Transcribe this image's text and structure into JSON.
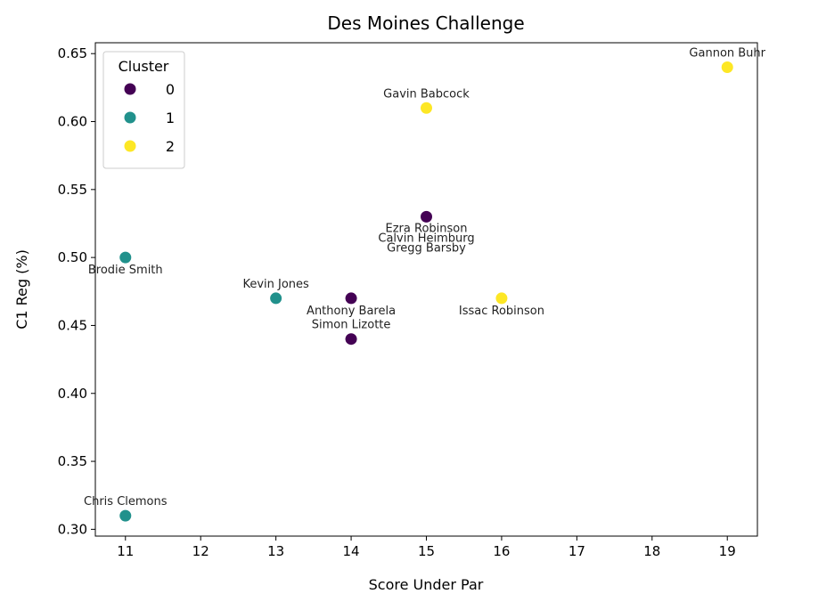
{
  "chart_data": {
    "type": "scatter",
    "title": "Des Moines Challenge",
    "xlabel": "Score Under Par",
    "ylabel": "C1 Reg (%)",
    "xlim": [
      10.6,
      19.4
    ],
    "ylim": [
      0.295,
      0.658
    ],
    "xticks": [
      "11",
      "12",
      "13",
      "14",
      "15",
      "16",
      "17",
      "18",
      "19"
    ],
    "yticks": [
      "0.30",
      "0.35",
      "0.40",
      "0.45",
      "0.50",
      "0.55",
      "0.60",
      "0.65"
    ],
    "grid": false,
    "legend": {
      "title": "Cluster",
      "position": "top-left",
      "entries": [
        {
          "label": "0",
          "color": "#440154"
        },
        {
          "label": "1",
          "color": "#21918c"
        },
        {
          "label": "2",
          "color": "#fde725"
        }
      ]
    },
    "points": [
      {
        "name": "Gannon Buhr",
        "x": 19,
        "y": 0.64,
        "cluster": 2,
        "label_pos": "above"
      },
      {
        "name": "Gavin Babcock",
        "x": 15,
        "y": 0.61,
        "cluster": 2,
        "label_pos": "above"
      },
      {
        "name": "Ezra Robinson",
        "x": 15,
        "y": 0.53,
        "cluster": 0,
        "label_pos": "below1"
      },
      {
        "name": "Calvin Heimburg",
        "x": 15,
        "y": 0.53,
        "cluster": 0,
        "label_pos": "below2"
      },
      {
        "name": "Gregg Barsby",
        "x": 15,
        "y": 0.53,
        "cluster": 0,
        "label_pos": "below3"
      },
      {
        "name": "Brodie Smith",
        "x": 11,
        "y": 0.5,
        "cluster": 1,
        "label_pos": "below"
      },
      {
        "name": "Kevin Jones",
        "x": 13,
        "y": 0.47,
        "cluster": 1,
        "label_pos": "above"
      },
      {
        "name": "Anthony Barela",
        "x": 14,
        "y": 0.47,
        "cluster": 0,
        "label_pos": "below"
      },
      {
        "name": "Issac Robinson",
        "x": 16,
        "y": 0.47,
        "cluster": 2,
        "label_pos": "below"
      },
      {
        "name": "Simon Lizotte",
        "x": 14,
        "y": 0.44,
        "cluster": 0,
        "label_pos": "above"
      },
      {
        "name": "Chris Clemons",
        "x": 11,
        "y": 0.31,
        "cluster": 1,
        "label_pos": "above"
      }
    ]
  }
}
